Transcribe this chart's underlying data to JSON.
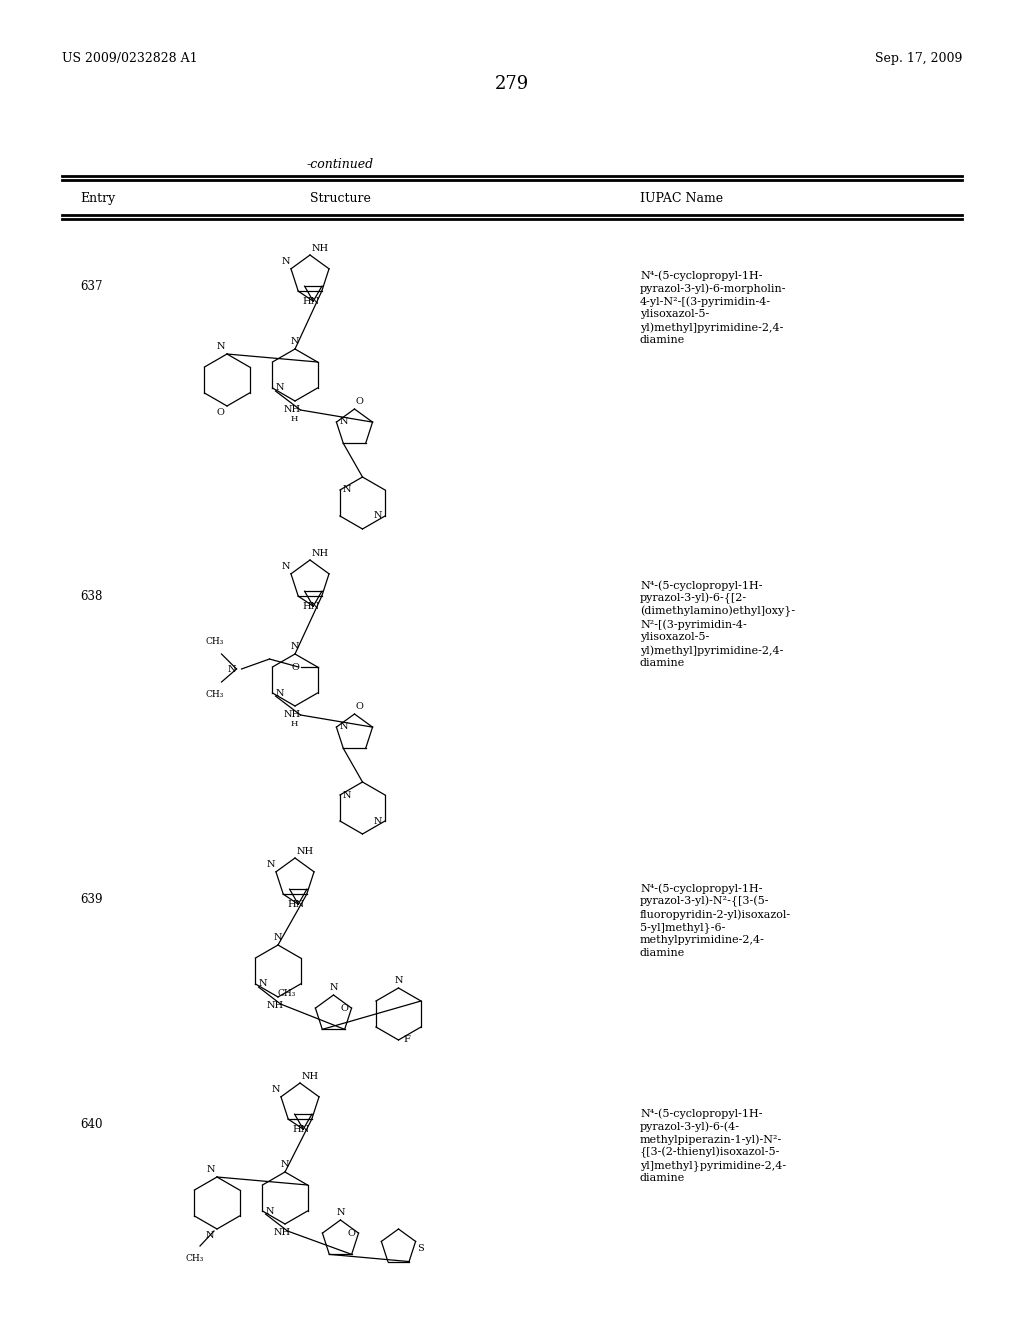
{
  "page_number": "279",
  "patent_number": "US 2009/0232828 A1",
  "patent_date": "Sep. 17, 2009",
  "continued_label": "-continued",
  "col_entry": "Entry",
  "col_structure": "Structure",
  "col_iupac": "IUPAC Name",
  "entries": [
    {
      "number": "637",
      "iupac_lines": [
        "N⁴-(5-cyclopropyl-1H-",
        "pyrazol-3-yl)-6-morpholin-",
        "4-yl-N²-[(3-pyrimidin-4-",
        "ylisoxazol-5-",
        "yl)methyl]pyrimidine-2,4-",
        "diamine"
      ]
    },
    {
      "number": "638",
      "iupac_lines": [
        "N⁴-(5-cyclopropyl-1H-",
        "pyrazol-3-yl)-6-{[2-",
        "(dimethylamino)ethyl]oxy}-",
        "N²-[(3-pyrimidin-4-",
        "ylisoxazol-5-",
        "yl)methyl]pyrimidine-2,4-",
        "diamine"
      ]
    },
    {
      "number": "639",
      "iupac_lines": [
        "N⁴-(5-cyclopropyl-1H-",
        "pyrazol-3-yl)-N²-{[3-(5-",
        "fluoropyridin-2-yl)isoxazol-",
        "5-yl]methyl}-6-",
        "methylpyrimidine-2,4-",
        "diamine"
      ]
    },
    {
      "number": "640",
      "iupac_lines": [
        "N⁴-(5-cyclopropyl-1H-",
        "pyrazol-3-yl)-6-(4-",
        "methylpiperazin-1-yl)-N²-",
        "{[3-(2-thienyl)isoxazol-5-",
        "yl]methyl}pyrimidine-2,4-",
        "diamine"
      ]
    }
  ]
}
